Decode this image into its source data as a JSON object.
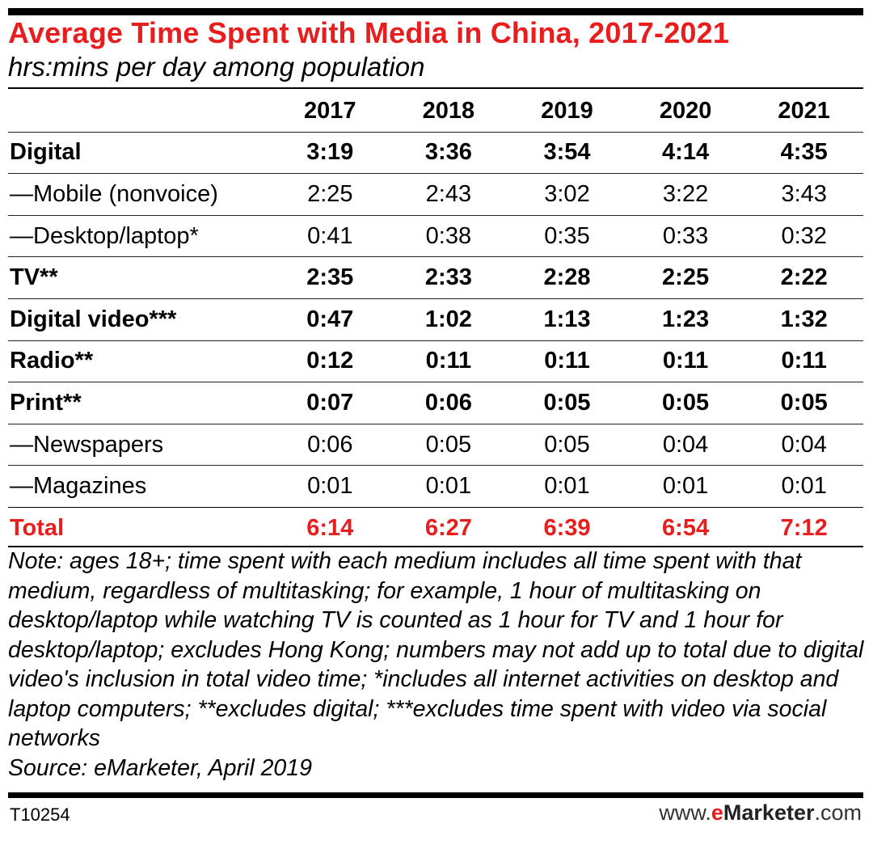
{
  "chart_data": {
    "type": "table",
    "title": "Average Time Spent with Media in China, 2017-2021",
    "subtitle": "hrs:mins per day among population",
    "columns": [
      "2017",
      "2018",
      "2019",
      "2020",
      "2021"
    ],
    "rows": [
      {
        "label": "Digital",
        "style": "bold",
        "values": [
          "3:19",
          "3:36",
          "3:54",
          "4:14",
          "4:35"
        ]
      },
      {
        "label": "—Mobile (nonvoice)",
        "style": "normal",
        "values": [
          "2:25",
          "2:43",
          "3:02",
          "3:22",
          "3:43"
        ]
      },
      {
        "label": "—Desktop/laptop*",
        "style": "normal",
        "values": [
          "0:41",
          "0:38",
          "0:35",
          "0:33",
          "0:32"
        ]
      },
      {
        "label": "TV**",
        "style": "bold",
        "values": [
          "2:35",
          "2:33",
          "2:28",
          "2:25",
          "2:22"
        ]
      },
      {
        "label": "Digital video***",
        "style": "bold",
        "values": [
          "0:47",
          "1:02",
          "1:13",
          "1:23",
          "1:32"
        ]
      },
      {
        "label": "Radio**",
        "style": "bold",
        "values": [
          "0:12",
          "0:11",
          "0:11",
          "0:11",
          "0:11"
        ]
      },
      {
        "label": "Print**",
        "style": "bold",
        "values": [
          "0:07",
          "0:06",
          "0:05",
          "0:05",
          "0:05"
        ]
      },
      {
        "label": "—Newspapers",
        "style": "normal",
        "values": [
          "0:06",
          "0:05",
          "0:05",
          "0:04",
          "0:04"
        ]
      },
      {
        "label": "—Magazines",
        "style": "normal",
        "values": [
          "0:01",
          "0:01",
          "0:01",
          "0:01",
          "0:01"
        ]
      }
    ],
    "total": {
      "label": "Total",
      "values": [
        "6:14",
        "6:27",
        "6:39",
        "6:54",
        "7:12"
      ]
    },
    "note": "Note: ages 18+; time spent with each medium includes all time spent with that medium, regardless of multitasking; for example, 1 hour of multitasking on desktop/laptop while watching TV is counted as 1 hour for TV and 1 hour for desktop/laptop; excludes Hong Kong; numbers may not add up to total due to digital video's inclusion in total video time; *includes all internet activities on desktop and laptop computers; **excludes digital; ***excludes time spent with video via social networks",
    "source": "Source: eMarketer, April 2019"
  },
  "footer": {
    "code": "T10254",
    "brand_prefix": "www.",
    "brand_e": "e",
    "brand_name": "Marketer",
    "brand_suffix": ".com"
  },
  "colors": {
    "accent": "#e81d1d",
    "text": "#000000"
  }
}
